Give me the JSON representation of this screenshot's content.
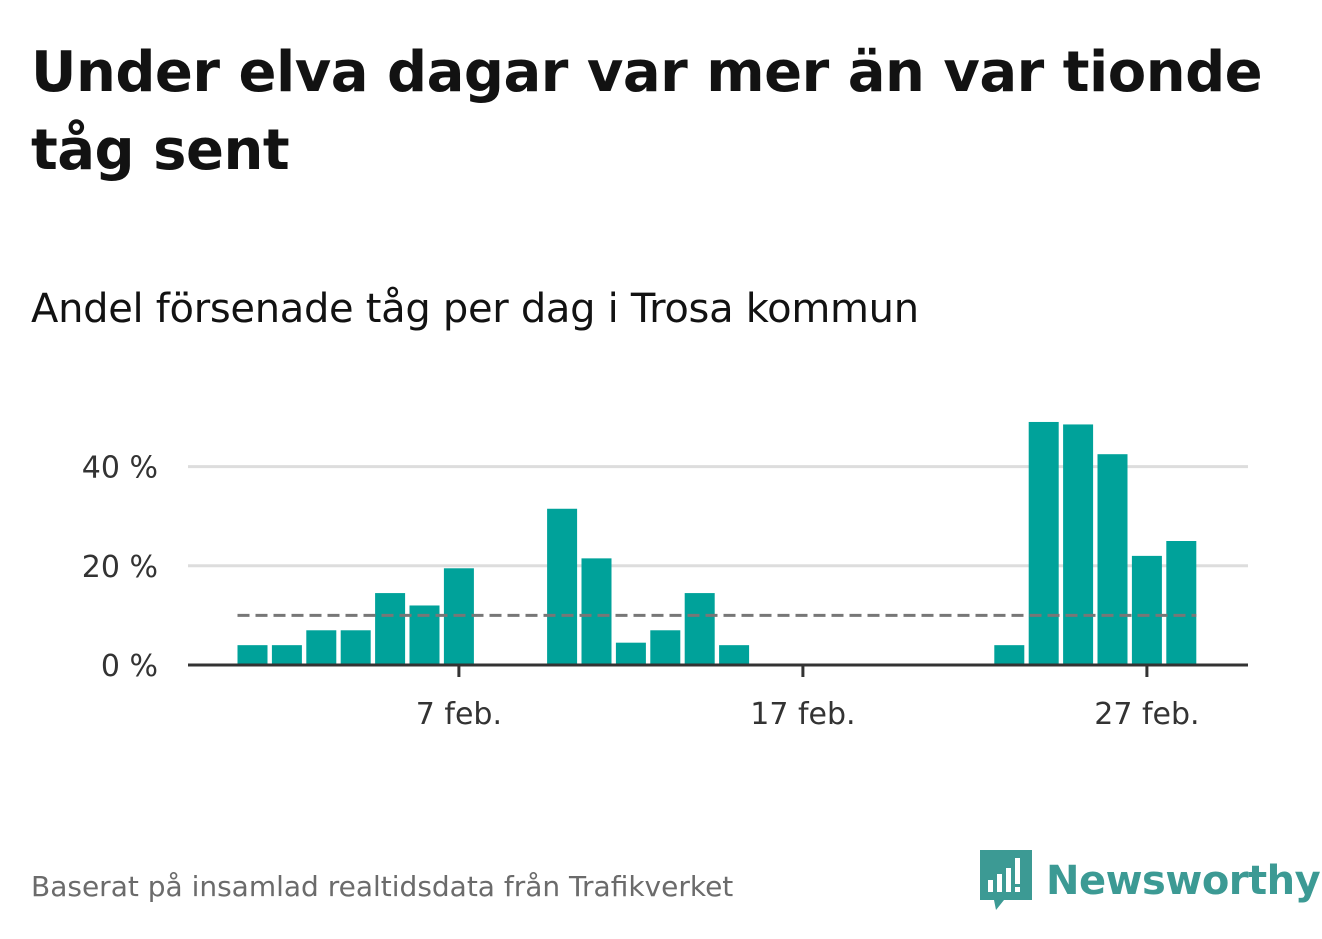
{
  "headline": "Under elva dagar var mer än var tionde tåg sent",
  "subtitle": "Andel försenade tåg per dag i Trosa kommun",
  "source": "Baserat på insamlad realtidsdata från Trafikverket",
  "logo": {
    "name": "Newsworthy",
    "icon": "newsworthy-logo-icon",
    "color": "#3c9a94"
  },
  "colors": {
    "bar": "#00a29a",
    "reference": "#777777",
    "grid": "#dddddd",
    "axis": "#333333"
  },
  "chart_data": {
    "type": "bar",
    "title": "Andel försenade tåg per dag i Trosa kommun",
    "x_unit": "day of February",
    "x": [
      1,
      2,
      3,
      4,
      5,
      6,
      7,
      8,
      9,
      10,
      11,
      12,
      13,
      14,
      15,
      16,
      17,
      18,
      19,
      20,
      21,
      22,
      23,
      24,
      25,
      26,
      27,
      28
    ],
    "values": [
      4,
      4,
      7,
      7,
      14.5,
      12,
      19.5,
      0,
      0,
      31.5,
      21.5,
      4.5,
      7,
      14.5,
      4,
      0,
      0,
      0,
      0,
      0,
      0,
      0,
      4,
      49,
      48.5,
      42.5,
      22,
      25
    ],
    "reference_line": {
      "value": 10,
      "style": "dashed"
    },
    "ylim": [
      0,
      50
    ],
    "y_ticks": [
      {
        "value": 0,
        "label": "0 %"
      },
      {
        "value": 20,
        "label": "20 %"
      },
      {
        "value": 40,
        "label": "40 %"
      }
    ],
    "x_ticks": [
      {
        "value": 7,
        "label": "7 feb."
      },
      {
        "value": 17,
        "label": "17 feb."
      },
      {
        "value": 27,
        "label": "27 feb."
      }
    ],
    "grid": true,
    "legend": "none"
  }
}
